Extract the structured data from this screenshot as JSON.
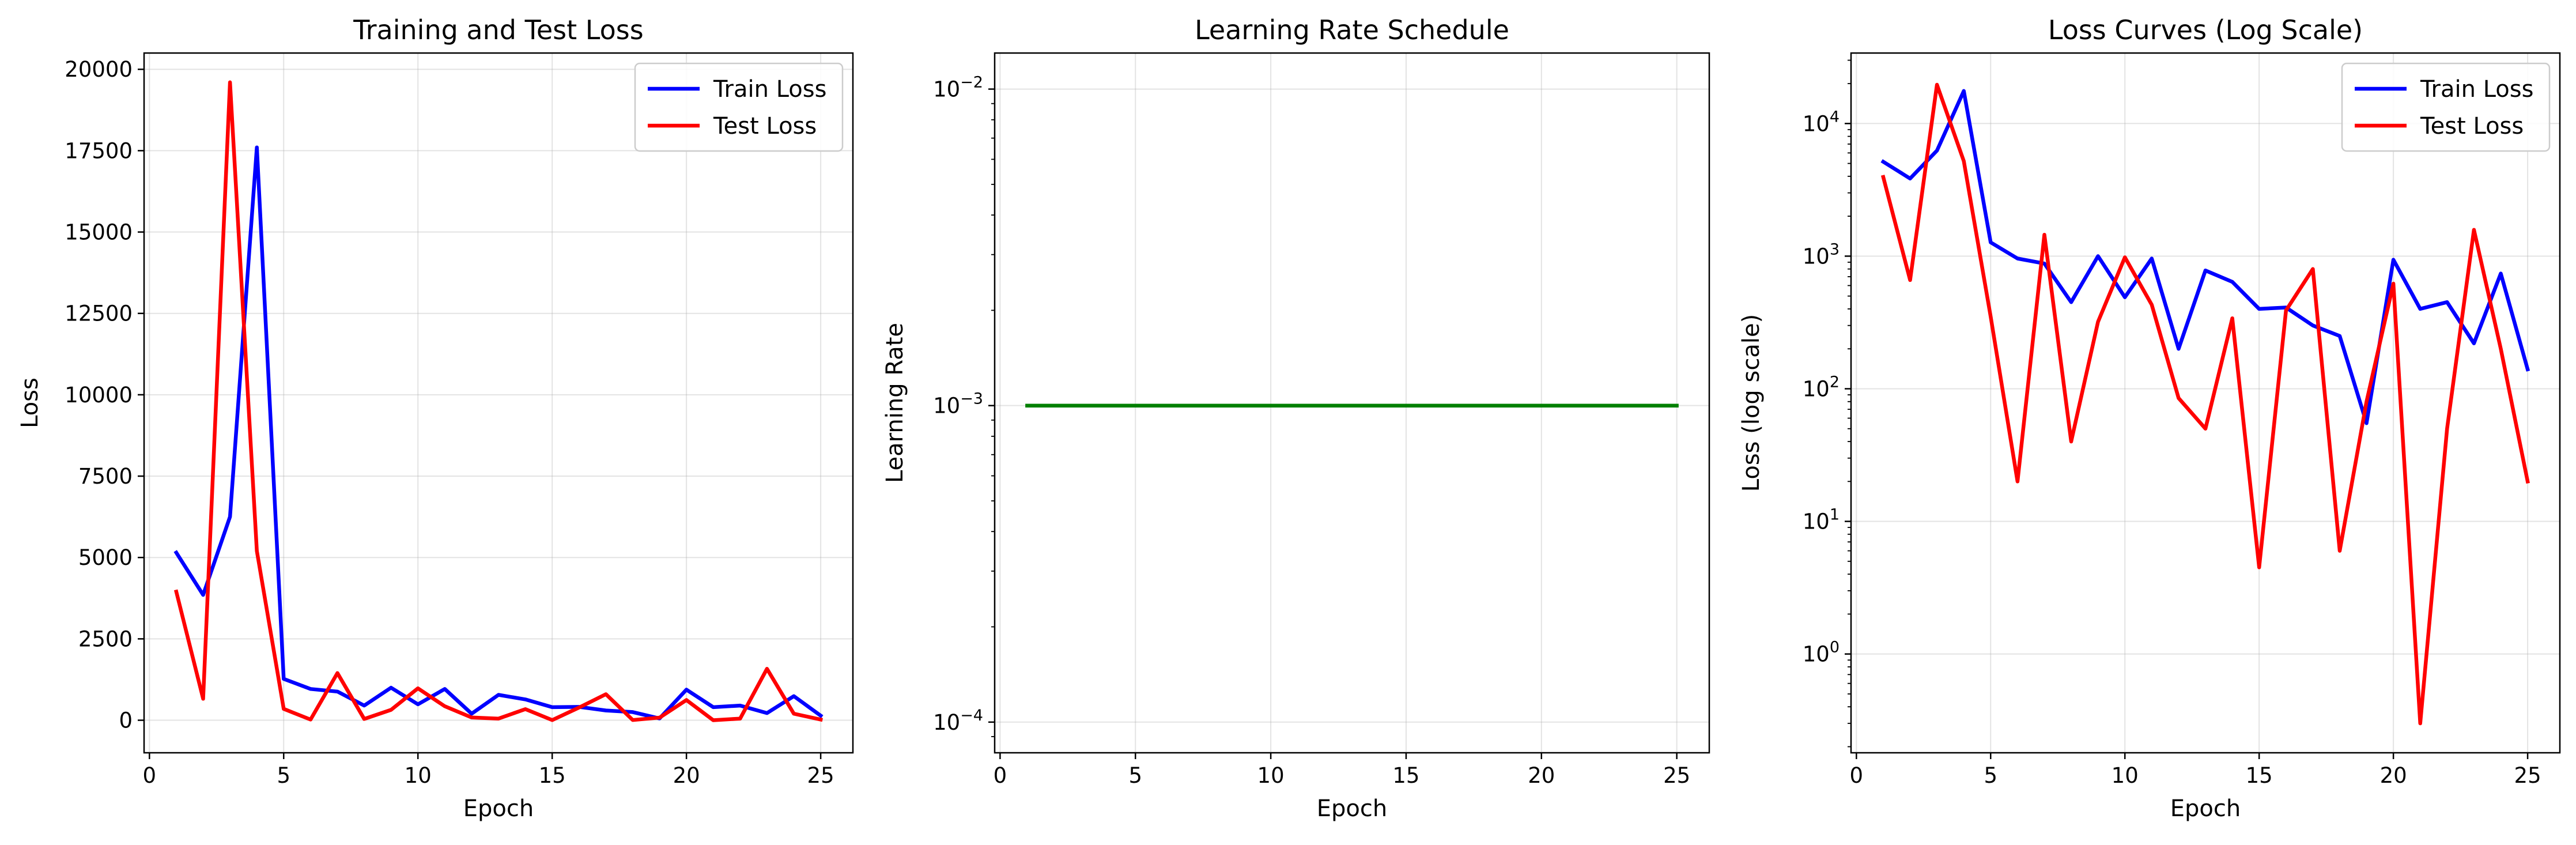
{
  "chart_data": [
    {
      "type": "line",
      "title": "Training and Test Loss",
      "xlabel": "Epoch",
      "ylabel": "Loss",
      "xlim": [
        -0.2,
        26.2
      ],
      "ylim": [
        -1000,
        20500
      ],
      "yscale": "linear",
      "xticks": [
        0,
        5,
        10,
        15,
        20,
        25
      ],
      "yticks": [
        0,
        2500,
        5000,
        7500,
        10000,
        12500,
        15000,
        17500,
        20000
      ],
      "ytick_labels": [
        "0",
        "2500",
        "5000",
        "7500",
        "10000",
        "12500",
        "15000",
        "17500",
        "20000"
      ],
      "grid": true,
      "legend": "top-right",
      "x": [
        1,
        2,
        3,
        4,
        5,
        6,
        7,
        8,
        9,
        10,
        11,
        12,
        13,
        14,
        15,
        16,
        17,
        18,
        19,
        20,
        21,
        22,
        23,
        24,
        25
      ],
      "series": [
        {
          "name": "Train Loss",
          "color": "#0000ff",
          "values": [
            5150,
            3850,
            6250,
            17600,
            1270,
            960,
            880,
            450,
            1000,
            490,
            960,
            200,
            780,
            640,
            400,
            410,
            300,
            250,
            55,
            940,
            400,
            450,
            220,
            740,
            140
          ]
        },
        {
          "name": "Test Loss",
          "color": "#ff0000",
          "values": [
            3950,
            660,
            19600,
            5200,
            350,
            20,
            1450,
            40,
            320,
            980,
            430,
            85,
            50,
            340,
            4.5,
            390,
            800,
            6,
            80,
            620,
            0.3,
            50,
            1580,
            200,
            20
          ]
        }
      ]
    },
    {
      "type": "line",
      "title": "Learning Rate Schedule",
      "xlabel": "Epoch",
      "ylabel": "Learning Rate",
      "xlim": [
        -0.2,
        26.2
      ],
      "ylim": [
        8e-05,
        0.013
      ],
      "yscale": "log",
      "xticks": [
        0,
        5,
        10,
        15,
        20,
        25
      ],
      "yticks": [
        0.0001,
        0.001,
        0.01
      ],
      "ytick_labels": [
        {
          "base": "10",
          "exp": "−4"
        },
        {
          "base": "10",
          "exp": "−3"
        },
        {
          "base": "10",
          "exp": "−2"
        }
      ],
      "grid": true,
      "x": [
        1,
        2,
        3,
        4,
        5,
        6,
        7,
        8,
        9,
        10,
        11,
        12,
        13,
        14,
        15,
        16,
        17,
        18,
        19,
        20,
        21,
        22,
        23,
        24,
        25
      ],
      "series": [
        {
          "color": "#008000",
          "values": [
            0.001,
            0.001,
            0.001,
            0.001,
            0.001,
            0.001,
            0.001,
            0.001,
            0.001,
            0.001,
            0.001,
            0.001,
            0.001,
            0.001,
            0.001,
            0.001,
            0.001,
            0.001,
            0.001,
            0.001,
            0.001,
            0.001,
            0.001,
            0.001,
            0.001
          ]
        }
      ]
    },
    {
      "type": "line",
      "title": "Loss Curves (Log Scale)",
      "xlabel": "Epoch",
      "ylabel": "Loss (log scale)",
      "xlim": [
        -0.2,
        26.2
      ],
      "ylim": [
        0.18,
        34000
      ],
      "yscale": "log",
      "xticks": [
        0,
        5,
        10,
        15,
        20,
        25
      ],
      "yticks": [
        1,
        10,
        100,
        1000,
        10000
      ],
      "ytick_labels": [
        {
          "base": "10",
          "exp": "0"
        },
        {
          "base": "10",
          "exp": "1"
        },
        {
          "base": "10",
          "exp": "2"
        },
        {
          "base": "10",
          "exp": "3"
        },
        {
          "base": "10",
          "exp": "4"
        }
      ],
      "grid": true,
      "legend": "top-right",
      "x": [
        1,
        2,
        3,
        4,
        5,
        6,
        7,
        8,
        9,
        10,
        11,
        12,
        13,
        14,
        15,
        16,
        17,
        18,
        19,
        20,
        21,
        22,
        23,
        24,
        25
      ],
      "series": [
        {
          "name": "Train Loss",
          "color": "#0000ff",
          "values": [
            5150,
            3850,
            6250,
            17600,
            1270,
            960,
            880,
            450,
            1000,
            490,
            960,
            200,
            780,
            640,
            400,
            410,
            300,
            250,
            55,
            940,
            400,
            450,
            220,
            740,
            140
          ]
        },
        {
          "name": "Test Loss",
          "color": "#ff0000",
          "values": [
            3950,
            660,
            19600,
            5200,
            350,
            20,
            1450,
            40,
            320,
            980,
            430,
            85,
            50,
            340,
            4.5,
            390,
            800,
            6,
            80,
            620,
            0.3,
            50,
            1580,
            200,
            20
          ]
        }
      ]
    }
  ]
}
